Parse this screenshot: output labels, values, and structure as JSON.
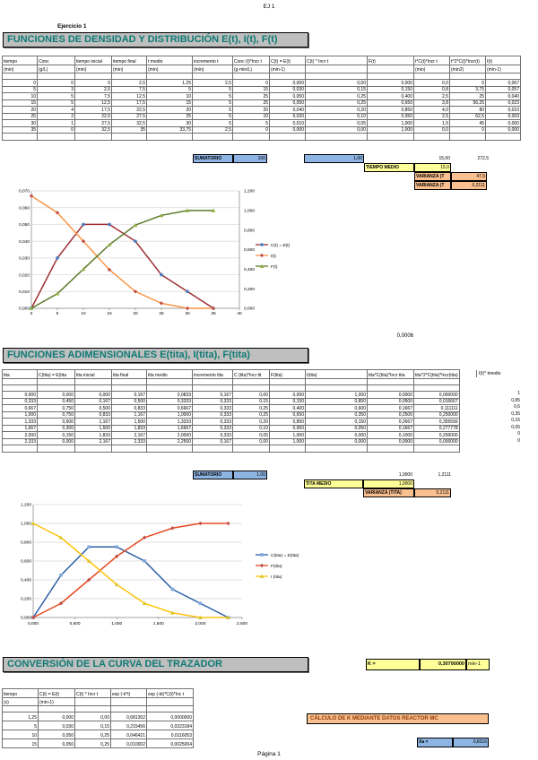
{
  "page": {
    "doc_header": "EJ 1",
    "footer": "Página 1"
  },
  "colors": {
    "title_text": "#0E7A74",
    "title_bg": "#BFBFBF",
    "cell_blue": "#8DB4E2",
    "cell_yellow": "#FFFF99",
    "cell_orange": "#FAC090",
    "banner_text": "#8F3A03"
  },
  "misc": {
    "stray_value": "0,0006"
  },
  "section1": {
    "exercise_label": "Ejercicio 1",
    "title": "FUNCIONES DE DENSIDAD Y DISTRIBUCIÓN E(t), I(t), F(t)",
    "table": {
      "headers": [
        "tiempo",
        "Conc",
        "tiempo inicial",
        "tiempo final",
        "t medio",
        "incremento t",
        "Conc (t)*Incr t",
        "C(t) = E(t)",
        "C(t) * Incr t",
        "F(t)",
        "t*C(t)*Incr t",
        "t^2*C(t)*Incr(t)",
        "I(t)"
      ],
      "units": [
        "(min)",
        "(g/L)",
        "(min)",
        "(min)",
        "(min)",
        "(min)",
        "(g·min/L)",
        "(min-1)",
        "",
        "",
        "(min)",
        "(min2)",
        "(min-1)"
      ],
      "rows": [
        [
          "0",
          "0",
          "0",
          "2,5",
          "1,25",
          "2,5",
          "0",
          "0,000",
          "0,00",
          "0,000",
          "0,0",
          "0",
          "0,067"
        ],
        [
          "5",
          "3",
          "2,5",
          "7,5",
          "5",
          "5",
          "15",
          "0,030",
          "0,15",
          "0,150",
          "0,8",
          "3,75",
          "0,057"
        ],
        [
          "10",
          "5",
          "7,5",
          "12,5",
          "10",
          "5",
          "25",
          "0,050",
          "0,25",
          "0,400",
          "2,5",
          "25",
          "0,040"
        ],
        [
          "15",
          "5",
          "12,5",
          "17,5",
          "15",
          "5",
          "25",
          "0,050",
          "0,25",
          "0,650",
          "3,8",
          "56,25",
          "0,023"
        ],
        [
          "20",
          "4",
          "17,5",
          "22,5",
          "20",
          "5",
          "20",
          "0,040",
          "0,20",
          "0,850",
          "4,0",
          "80",
          "0,010"
        ],
        [
          "25",
          "2",
          "22,5",
          "27,5",
          "25",
          "5",
          "10",
          "0,020",
          "0,10",
          "0,950",
          "2,5",
          "62,5",
          "0,003"
        ],
        [
          "30",
          "1",
          "27,5",
          "32,5",
          "30",
          "5",
          "5",
          "0,010",
          "0,05",
          "1,000",
          "1,5",
          "45",
          "0,000"
        ],
        [
          "35",
          "0",
          "32,5",
          "35",
          "33,75",
          "2,5",
          "0",
          "0,000",
          "0,00",
          "1,000",
          "0,0",
          "0",
          "0,000"
        ]
      ]
    },
    "summary": {
      "sumatorio_label": "SUMATORIO",
      "sumatorio_value": "100",
      "sum_et_value": "1,00",
      "t_sum": "15,00",
      "t2_sum": "272,5",
      "tiempo_medio_label": "TIEMPO MEDIO",
      "tiempo_medio_value": "15,0",
      "varianza_label": "VARIANZA (T",
      "varianza_value": "47,5",
      "varianza_adim_label": "VARIANZA (T",
      "varianza_adim_value": "0,2111"
    }
  },
  "section2": {
    "title": "FUNCIONES ADIMENSIONALES E(tita), I(tita), F(tita)",
    "table": {
      "headers": [
        "tita",
        "C(tita) = E(tita",
        "tita inicial",
        "tita final",
        "tita medio",
        "incremento tita",
        "C (tita)*Incr tit",
        "F(tita)",
        "I(tita)",
        "tita*C(tita)*Incr tita",
        "tita^2*C(tita)*Incr(tita)"
      ],
      "rows": [
        [
          "0,000",
          "0,000",
          "0,000",
          "0,167",
          "0,0833",
          "0,167",
          "0,00",
          "0,000",
          "1,000",
          "0,0000",
          "0,000000"
        ],
        [
          "0,333",
          "0,450",
          "0,167",
          "0,500",
          "0,3333",
          "0,333",
          "0,15",
          "0,150",
          "0,850",
          "0,0500",
          "0,016667"
        ],
        [
          "0,667",
          "0,750",
          "0,500",
          "0,833",
          "0,6667",
          "0,333",
          "0,25",
          "0,400",
          "0,600",
          "0,1667",
          "0,111111"
        ],
        [
          "1,000",
          "0,750",
          "0,833",
          "1,167",
          "1,0000",
          "0,333",
          "0,25",
          "0,650",
          "0,350",
          "0,2500",
          "0,250000"
        ],
        [
          "1,333",
          "0,600",
          "1,167",
          "1,500",
          "1,3333",
          "0,333",
          "0,20",
          "0,850",
          "0,150",
          "0,2667",
          "0,355556"
        ],
        [
          "1,667",
          "0,300",
          "1,500",
          "1,833",
          "1,6667",
          "0,333",
          "0,10",
          "0,950",
          "0,050",
          "0,1667",
          "0,277778"
        ],
        [
          "2,000",
          "0,150",
          "1,833",
          "2,167",
          "2,0000",
          "0,333",
          "0,05",
          "1,000",
          "0,000",
          "0,1000",
          "0,200000"
        ],
        [
          "2,333",
          "0,000",
          "2,167",
          "2,333",
          "2,2500",
          "0,167",
          "0,00",
          "1,000",
          "0,000",
          "0,0000",
          "0,000000"
        ]
      ]
    },
    "extra_col": {
      "header": "I(t)* tmedio",
      "values": [
        "1",
        "0,85",
        "0,6",
        "0,35",
        "0,15",
        "0,05",
        "0",
        "0"
      ]
    },
    "summary": {
      "sumatorio_label": "SUMATORIO",
      "sumatorio_value": "1,00",
      "tita_sum": "1,0000",
      "tita2_sum": "1,2111",
      "tita_medio_label": "TITA MEDIO",
      "tita_medio_value": "1,0000",
      "varianza_label": "VARIANZA (TITA)",
      "varianza_value": "0,2111"
    }
  },
  "section3": {
    "title": "CONVERSIÓN DE LA CURVA DEL TRAZADOR",
    "k_box": {
      "label": "K =",
      "value": "0,30700000",
      "unit": "min-1"
    },
    "table": {
      "headers": [
        "tiempo",
        "C(t) = E(t)",
        "C(t) * Incr t",
        "exp (-k*t)",
        "exp (-kt)*C(t)*Inc t"
      ],
      "units": [
        "(s)",
        "(min-1)",
        "",
        "",
        ""
      ],
      "rows": [
        [
          "1,25",
          "0,000",
          "0,00",
          "0,681302",
          "0,0000000"
        ],
        [
          "5",
          "0,030",
          "0,15",
          "0,215456",
          "0,0323184"
        ],
        [
          "10",
          "0,050",
          "0,25",
          "0,046421",
          "0,0116053"
        ],
        [
          "15",
          "0,050",
          "0,25",
          "0,010002",
          "0,0025004"
        ]
      ]
    },
    "banner": "CÁLCULO DE K MEDIANTE DATOS REACTOR MC",
    "xa_box": {
      "label": "Xa =",
      "value": "0,8216"
    }
  },
  "chart_data": [
    {
      "type": "line",
      "title": "",
      "x": [
        0,
        5,
        10,
        15,
        20,
        25,
        30,
        35
      ],
      "series": [
        {
          "name": "C(t) = E(t)",
          "axis": "left",
          "line_color": "#9E2F33",
          "marker": "circle",
          "marker_color": "#3F7CC4",
          "values": [
            0,
            0.03,
            0.05,
            0.05,
            0.04,
            0.02,
            0.01,
            0
          ]
        },
        {
          "name": "I(t)",
          "axis": "left",
          "line_color": "#F79646",
          "marker": "diamond",
          "marker_color": "#C0504D",
          "values": [
            0.067,
            0.057,
            0.04,
            0.023,
            0.01,
            0.003,
            0,
            0
          ]
        },
        {
          "name": "F(t)",
          "axis": "right",
          "line_color": "#5C7A29",
          "marker": "triangle",
          "marker_color": "#8FAF3C",
          "values": [
            0,
            0.15,
            0.4,
            0.65,
            0.85,
            0.95,
            1.0,
            1.0
          ]
        }
      ],
      "xlim": [
        0,
        40
      ],
      "ylim": [
        0,
        0.07
      ],
      "y2lim": [
        0,
        1.2
      ],
      "xtick_values": [
        0,
        5,
        10,
        15,
        20,
        25,
        30,
        35,
        40
      ],
      "xtick_labels": [
        "0",
        "5",
        "10",
        "15",
        "20",
        "25",
        "30",
        "35",
        "40"
      ],
      "ytick_values": [
        0,
        0.01,
        0.02,
        0.03,
        0.04,
        0.05,
        0.06,
        0.07
      ],
      "ytick_labels": [
        "0,000",
        "0,010",
        "0,020",
        "0,030",
        "0,040",
        "0,050",
        "0,060",
        "0,070"
      ],
      "y2tick_values": [
        0,
        0.2,
        0.4,
        0.6,
        0.8,
        1.0,
        1.2
      ],
      "y2tick_labels": [
        "0,000",
        "0,200",
        "0,400",
        "0,600",
        "0,800",
        "1,000",
        "1,200"
      ],
      "grid": true,
      "legend_position": "right"
    },
    {
      "type": "line",
      "title": "",
      "x": [
        0,
        0.333,
        0.667,
        1.0,
        1.333,
        1.667,
        2.0,
        2.333
      ],
      "series": [
        {
          "name": "C(tita) = E(tita)",
          "axis": "left",
          "line_color": "#2C5FA4",
          "marker": "square",
          "marker_color": "#7FA9DB",
          "values": [
            0,
            0.45,
            0.75,
            0.75,
            0.6,
            0.3,
            0.15,
            0
          ]
        },
        {
          "name": "F(tita)",
          "axis": "left",
          "line_color": "#E74A21",
          "marker": "diamond",
          "marker_color": "#C0504D",
          "values": [
            0,
            0.15,
            0.4,
            0.65,
            0.85,
            0.95,
            1.0,
            1.0
          ]
        },
        {
          "name": "I (tita)",
          "axis": "left",
          "line_color": "#FFC30B",
          "marker": "triangle",
          "marker_color": "#D8C424",
          "values": [
            1.0,
            0.85,
            0.6,
            0.35,
            0.15,
            0.05,
            0,
            0
          ]
        }
      ],
      "xlim": [
        0,
        2.5
      ],
      "ylim": [
        0,
        1.2
      ],
      "xtick_values": [
        0,
        0.5,
        1.0,
        1.5,
        2.0,
        2.5
      ],
      "xtick_labels": [
        "0,000",
        "0,500",
        "1,000",
        "1,500",
        "2,000",
        "2,500"
      ],
      "ytick_values": [
        0,
        0.2,
        0.4,
        0.6,
        0.8,
        1.0,
        1.2
      ],
      "ytick_labels": [
        "0,000",
        "0,200",
        "0,400",
        "0,600",
        "0,800",
        "1,000",
        "1,200"
      ],
      "grid": true,
      "legend_position": "right"
    }
  ]
}
